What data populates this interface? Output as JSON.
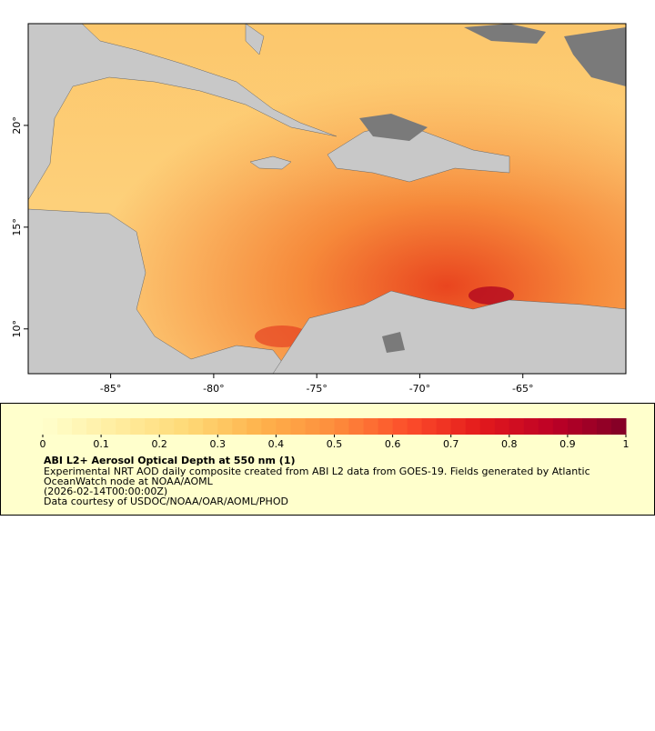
{
  "map": {
    "xlim": [
      -89,
      -60
    ],
    "ylim": [
      7.8,
      25
    ],
    "xticks": [
      {
        "value": -85,
        "label": "-85°"
      },
      {
        "value": -80,
        "label": "-80°"
      },
      {
        "value": -75,
        "label": "-75°"
      },
      {
        "value": -70,
        "label": "-70°"
      },
      {
        "value": -65,
        "label": "-65°"
      }
    ],
    "yticks": [
      {
        "value": 10,
        "label": "10°"
      },
      {
        "value": 15,
        "label": "15°"
      },
      {
        "value": 20,
        "label": "20°"
      }
    ]
  },
  "colorbar": {
    "lim": [
      0,
      1
    ],
    "ticks": [
      0,
      0.1,
      0.2,
      0.3,
      0.4,
      0.5,
      0.6,
      0.7,
      0.8,
      0.9,
      1
    ],
    "colors": [
      "#ffffcc",
      "#ffeda0",
      "#fed976",
      "#feb24c",
      "#fd8d3c",
      "#fc4e2a",
      "#e31a1c",
      "#bd0026",
      "#800026"
    ]
  },
  "legend": {
    "title": "ABI L2+ Aerosol Optical Depth at 550 nm (1)",
    "lines": [
      "Experimental NRT AOD daily composite created from ABI L2 data from GOES-19. Fields generated by Atlantic",
      "OceanWatch node at NOAA/AOML",
      "(2026-02-14T00:00:00Z)",
      "Data courtesy of USDOC/NOAA/OAR/AOML/PHOD"
    ]
  }
}
